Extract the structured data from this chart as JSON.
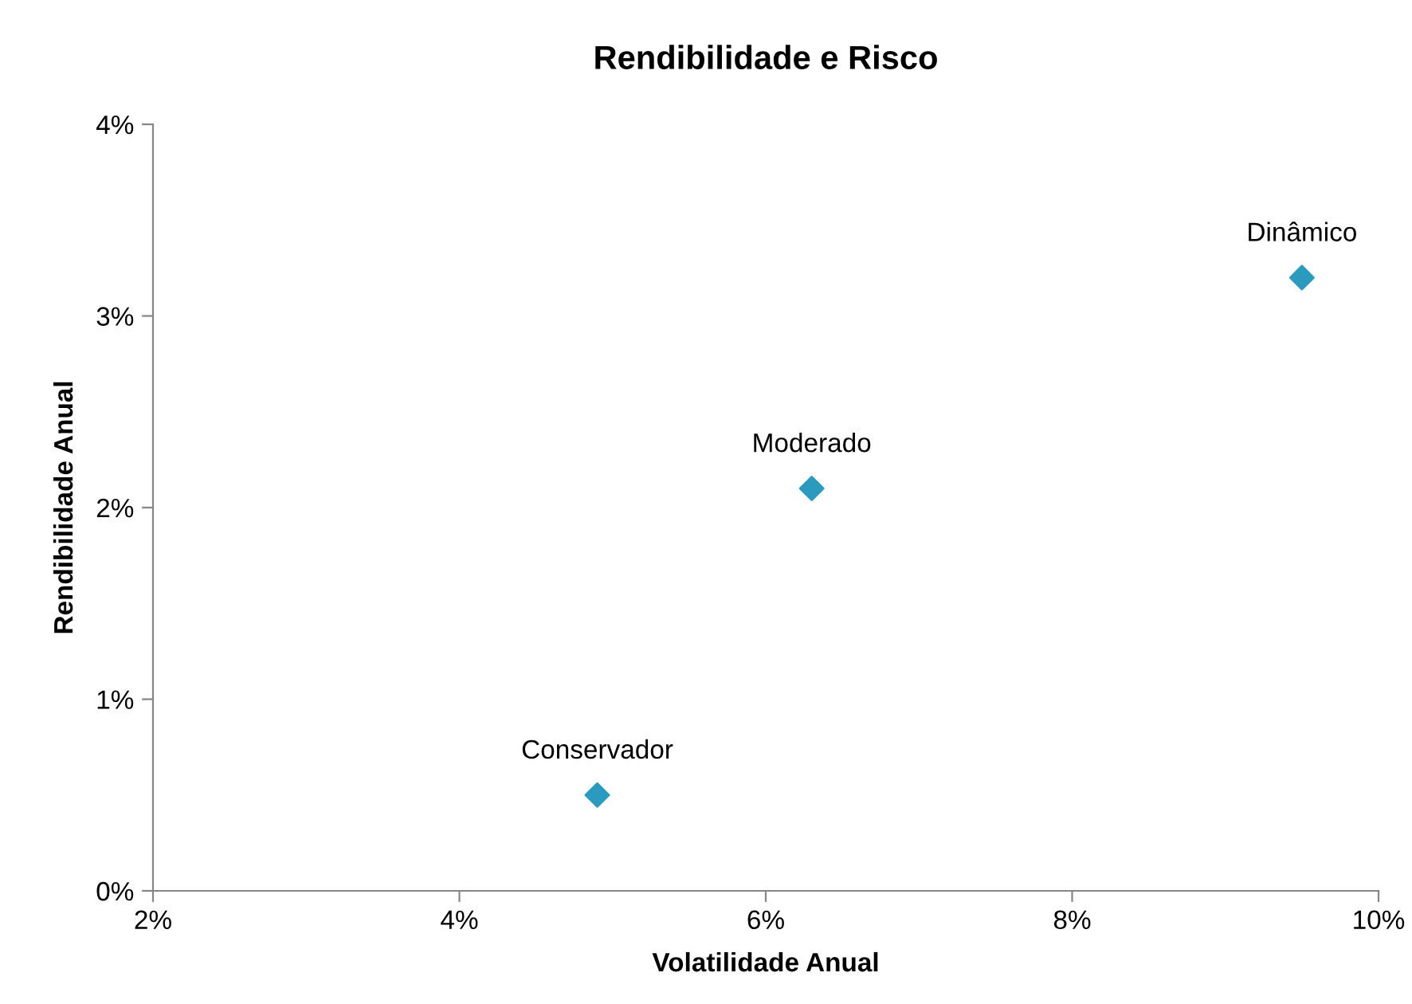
{
  "chart_data": {
    "type": "scatter",
    "title": "Rendibilidade e Risco",
    "xlabel": "Volatilidade Anual",
    "ylabel": "Rendibilidade Anual",
    "x": [
      4.9,
      6.3,
      9.5
    ],
    "series": [
      {
        "color": "#2a9bbf",
        "values": [
          0.5,
          2.1,
          3.2
        ]
      }
    ],
    "marker": "diamond",
    "grid": false,
    "legend": false,
    "xlim": [
      2,
      10
    ],
    "xticks": [
      {
        "value": 2,
        "label": "2%"
      },
      {
        "value": 4,
        "label": "4%"
      },
      {
        "value": 6,
        "label": "6%"
      },
      {
        "value": 8,
        "label": "8%"
      },
      {
        "value": 10,
        "label": "10%"
      }
    ],
    "ylim": [
      0,
      4
    ],
    "yticks": [
      {
        "value": 0,
        "label": "0%"
      },
      {
        "value": 1,
        "label": "1%"
      },
      {
        "value": 2,
        "label": "2%"
      },
      {
        "value": 3,
        "label": "3%"
      },
      {
        "value": 4,
        "label": "4%"
      }
    ],
    "annotations": [
      {
        "text": "Conservador",
        "x": 4.9,
        "y": 0.5
      },
      {
        "text": "Moderado",
        "x": 6.3,
        "y": 2.1
      },
      {
        "text": "Dinâmico",
        "x": 9.5,
        "y": 3.2
      }
    ]
  }
}
